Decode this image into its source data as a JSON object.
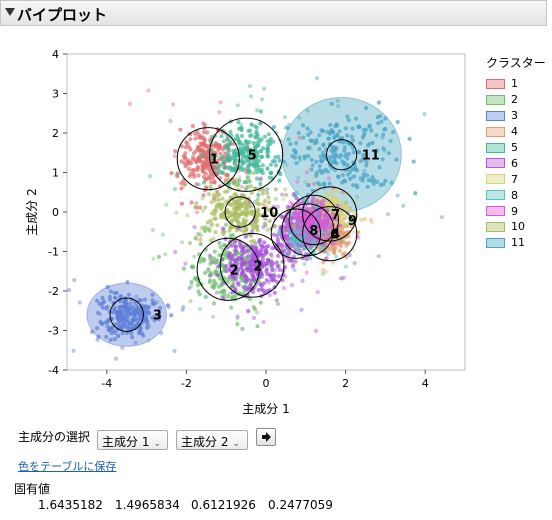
{
  "panel": {
    "title": "バイプロット"
  },
  "chart_data": {
    "type": "scatter",
    "xlabel": "主成分 1",
    "ylabel": "主成分 2",
    "xlim": [
      -5,
      5
    ],
    "ylim": [
      -4,
      4
    ],
    "xticks": [
      -4,
      -2,
      0,
      2,
      4
    ],
    "yticks": [
      -4,
      -3,
      -2,
      -1,
      0,
      1,
      2,
      3,
      4
    ],
    "grid": false,
    "legend": {
      "title": "クラスター",
      "placement": "right",
      "entries": [
        "1",
        "2",
        "3",
        "4",
        "5",
        "6",
        "7",
        "8",
        "9",
        "10",
        "11"
      ]
    },
    "clusters": [
      {
        "label": "1",
        "color": "#e06c6c",
        "center": [
          -1.45,
          1.35
        ],
        "spread": [
          0.35,
          0.4
        ],
        "circle_r": 0.78,
        "ellipse": null
      },
      {
        "label": "2",
        "color": "#6fc06f",
        "center": [
          -0.95,
          -1.45
        ],
        "spread": [
          0.5,
          0.45
        ],
        "circle_r": 0.78,
        "ellipse": null
      },
      {
        "label": "3",
        "color": "#5c7fd8",
        "center": [
          -3.5,
          -2.6
        ],
        "spread": [
          0.35,
          0.28
        ],
        "circle_r": 0.42,
        "ellipse": [
          1.0,
          0.8
        ]
      },
      {
        "label": "4",
        "color": "#e0a070",
        "center": [
          1.6,
          -0.55
        ],
        "spread": [
          0.25,
          0.25
        ],
        "circle_r": 0.68,
        "ellipse": null
      },
      {
        "label": "5",
        "color": "#40b89a",
        "center": [
          -0.5,
          1.45
        ],
        "spread": [
          0.4,
          0.35
        ],
        "circle_r": 0.92,
        "ellipse": null
      },
      {
        "label": "6",
        "color": "#b45ad8",
        "center": [
          0.75,
          -0.55
        ],
        "spread": [
          0.3,
          0.3
        ],
        "circle_r": 0.62,
        "ellipse": null
      },
      {
        "label": "7",
        "color": "#d9d37a",
        "center": [
          1.6,
          -0.05
        ],
        "spread": [
          0.25,
          0.22
        ],
        "circle_r": 0.68,
        "ellipse": null
      },
      {
        "label": "8",
        "color": "#55c2c2",
        "center": [
          1.05,
          -0.45
        ],
        "spread": [
          0.25,
          0.25
        ],
        "circle_r": 0.65,
        "ellipse": null
      },
      {
        "label": "9",
        "color": "#d85ad8",
        "center": [
          1.2,
          -0.2
        ],
        "spread": [
          0.28,
          0.25
        ],
        "circle_r": 0.62,
        "ellipse": null
      },
      {
        "label": "10",
        "color": "#a9bd60",
        "center": [
          -0.65,
          0.0
        ],
        "spread": [
          0.45,
          0.35
        ],
        "circle_r": 0.38,
        "ellipse": null
      },
      {
        "label": "11",
        "color": "#46a4c4",
        "center": [
          1.9,
          1.45
        ],
        "spread": [
          0.7,
          0.5
        ],
        "circle_r": 0.38,
        "ellipse": [
          1.5,
          1.45
        ]
      },
      {
        "label": "2",
        "color": "#a74fe0",
        "center": [
          -0.35,
          -1.35
        ],
        "spread": [
          0.35,
          0.35
        ],
        "circle_r": 0.8,
        "ellipse": null
      }
    ]
  },
  "controls": {
    "pc_select_label": "主成分の選択",
    "x_select": "主成分 1",
    "y_select": "主成分 2",
    "go_icon": "arrow-right-icon",
    "save_colors_link": "色をテーブルに保存"
  },
  "eigenvalues": {
    "title": "固有値",
    "values": [
      "1.6435182",
      "1.4965834",
      "0.6121926",
      "0.2477059"
    ]
  }
}
